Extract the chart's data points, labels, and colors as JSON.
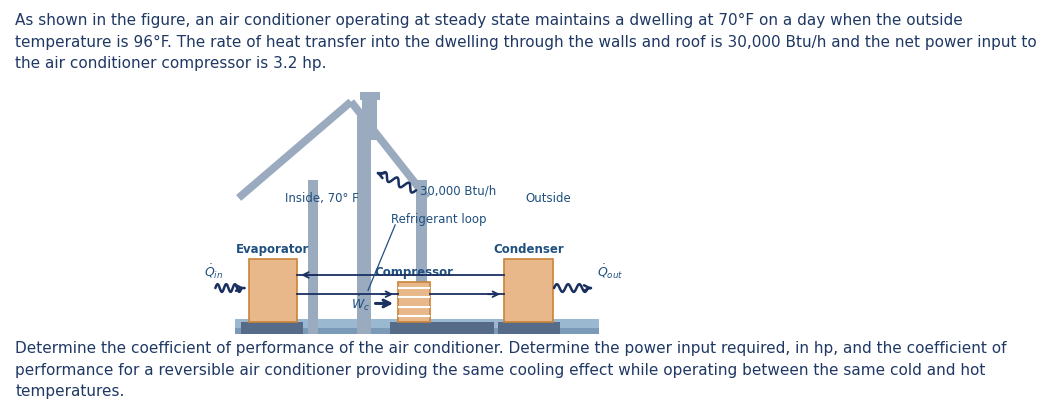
{
  "title_text": "As shown in the figure, an air conditioner operating at steady state maintains a dwelling at 70°F on a day when the outside\ntemperature is 96°F. The rate of heat transfer into the dwelling through the walls and roof is 30,000 Btu/h and the net power input to\nthe air conditioner compressor is 3.2 hp.",
  "bottom_text": "Determine the coefficient of performance of the air conditioner. Determine the power input required, in hp, and the coefficient of\nperformance for a reversible air conditioner providing the same cooling effect while operating between the same cold and hot\ntemperatures.",
  "text_color": "#1f3864",
  "label_color": "#1f5080",
  "house_color": "#9aaabf",
  "box_color": "#e8b88a",
  "box_edge_color": "#c8843a",
  "base_color": "#6a8aaa",
  "ground_color_top": "#8fafc8",
  "ground_color_bot": "#6080a0",
  "pipe_color": "#9aaabf",
  "arrow_color": "#1a3060",
  "inside_label": "Inside, 70° F",
  "outside_label": "Outside",
  "evaporator_label": "Evaporator",
  "condenser_label": "Condenser",
  "compressor_label": "Compressor",
  "refrigerant_label": "Refrigerant loop",
  "heat_in_label": "30,000 Btu/h",
  "font_size_main": 11,
  "font_size_label": 9
}
